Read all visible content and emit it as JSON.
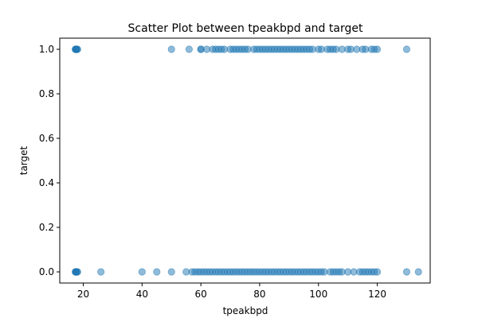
{
  "chart_data": {
    "type": "scatter",
    "title": "Scatter Plot between tpeakbpd and target",
    "xlabel": "tpeakbpd",
    "ylabel": "target",
    "xlim": [
      12,
      138
    ],
    "ylim": [
      -0.05,
      1.05
    ],
    "x_ticks": [
      {
        "value": 20,
        "label": "20"
      },
      {
        "value": 40,
        "label": "40"
      },
      {
        "value": 60,
        "label": "60"
      },
      {
        "value": 80,
        "label": "80"
      },
      {
        "value": 100,
        "label": "100"
      },
      {
        "value": 120,
        "label": "120"
      }
    ],
    "y_ticks": [
      {
        "value": 0.0,
        "label": "0.0"
      },
      {
        "value": 0.2,
        "label": "0.2"
      },
      {
        "value": 0.4,
        "label": "0.4"
      },
      {
        "value": 0.6,
        "label": "0.6"
      },
      {
        "value": 0.8,
        "label": "0.8"
      },
      {
        "value": 1.0,
        "label": "1.0"
      }
    ],
    "grid": false,
    "marker_color": "#1f77b4",
    "marker_opacity": 0.5,
    "series": [
      {
        "points": [
          [
            17.5,
            1
          ],
          [
            17.5,
            1
          ],
          [
            17.5,
            1
          ],
          [
            17.5,
            1
          ],
          [
            17.5,
            1
          ],
          [
            18,
            1
          ],
          [
            18,
            1
          ],
          [
            17.3,
            1
          ],
          [
            50,
            1
          ],
          [
            56,
            1
          ],
          [
            60,
            1
          ],
          [
            60,
            1
          ],
          [
            62,
            1
          ],
          [
            64,
            1
          ],
          [
            65,
            1
          ],
          [
            66,
            1
          ],
          [
            67,
            1
          ],
          [
            68,
            1
          ],
          [
            70,
            1
          ],
          [
            71,
            1
          ],
          [
            72,
            1
          ],
          [
            73,
            1
          ],
          [
            74,
            1
          ],
          [
            75,
            1
          ],
          [
            76,
            1
          ],
          [
            78,
            1
          ],
          [
            79,
            1
          ],
          [
            80,
            1
          ],
          [
            81,
            1
          ],
          [
            82,
            1
          ],
          [
            83,
            1
          ],
          [
            84,
            1
          ],
          [
            85,
            1
          ],
          [
            86,
            1
          ],
          [
            87,
            1
          ],
          [
            88,
            1
          ],
          [
            89,
            1
          ],
          [
            90,
            1
          ],
          [
            91,
            1
          ],
          [
            92,
            1
          ],
          [
            93,
            1
          ],
          [
            94,
            1
          ],
          [
            95,
            1
          ],
          [
            96,
            1
          ],
          [
            97,
            1
          ],
          [
            98,
            1
          ],
          [
            100,
            1
          ],
          [
            101,
            1
          ],
          [
            103,
            1
          ],
          [
            104,
            1
          ],
          [
            105,
            1
          ],
          [
            106,
            1
          ],
          [
            108,
            1
          ],
          [
            110,
            1
          ],
          [
            111,
            1
          ],
          [
            113,
            1
          ],
          [
            115,
            1
          ],
          [
            116,
            1
          ],
          [
            118,
            1
          ],
          [
            119,
            1
          ],
          [
            120,
            1
          ],
          [
            130,
            1
          ],
          [
            17.5,
            0
          ],
          [
            17.5,
            0
          ],
          [
            17.5,
            0
          ],
          [
            17.5,
            0
          ],
          [
            18,
            0
          ],
          [
            18,
            0
          ],
          [
            17.3,
            0
          ],
          [
            26,
            0
          ],
          [
            40,
            0
          ],
          [
            45,
            0
          ],
          [
            50,
            0
          ],
          [
            55,
            0
          ],
          [
            57,
            0
          ],
          [
            58,
            0
          ],
          [
            59,
            0
          ],
          [
            60,
            0
          ],
          [
            61,
            0
          ],
          [
            62,
            0
          ],
          [
            63,
            0
          ],
          [
            64,
            0
          ],
          [
            65,
            0
          ],
          [
            66,
            0
          ],
          [
            67,
            0
          ],
          [
            68,
            0
          ],
          [
            69,
            0
          ],
          [
            70,
            0
          ],
          [
            71,
            0
          ],
          [
            72,
            0
          ],
          [
            73,
            0
          ],
          [
            74,
            0
          ],
          [
            75,
            0
          ],
          [
            76,
            0
          ],
          [
            77,
            0
          ],
          [
            78,
            0
          ],
          [
            79,
            0
          ],
          [
            80,
            0
          ],
          [
            81,
            0
          ],
          [
            82,
            0
          ],
          [
            83,
            0
          ],
          [
            84,
            0
          ],
          [
            85,
            0
          ],
          [
            86,
            0
          ],
          [
            87,
            0
          ],
          [
            88,
            0
          ],
          [
            89,
            0
          ],
          [
            90,
            0
          ],
          [
            91,
            0
          ],
          [
            92,
            0
          ],
          [
            93,
            0
          ],
          [
            94,
            0
          ],
          [
            95,
            0
          ],
          [
            96,
            0
          ],
          [
            97,
            0
          ],
          [
            98,
            0
          ],
          [
            99,
            0
          ],
          [
            100,
            0
          ],
          [
            101,
            0
          ],
          [
            102,
            0
          ],
          [
            104,
            0
          ],
          [
            105,
            0
          ],
          [
            106,
            0
          ],
          [
            107,
            0
          ],
          [
            108,
            0
          ],
          [
            110,
            0
          ],
          [
            112,
            0
          ],
          [
            114,
            0
          ],
          [
            115,
            0
          ],
          [
            116,
            0
          ],
          [
            117,
            0
          ],
          [
            118,
            0
          ],
          [
            119,
            0
          ],
          [
            120,
            0
          ],
          [
            130,
            0
          ],
          [
            134,
            0
          ]
        ]
      }
    ]
  }
}
